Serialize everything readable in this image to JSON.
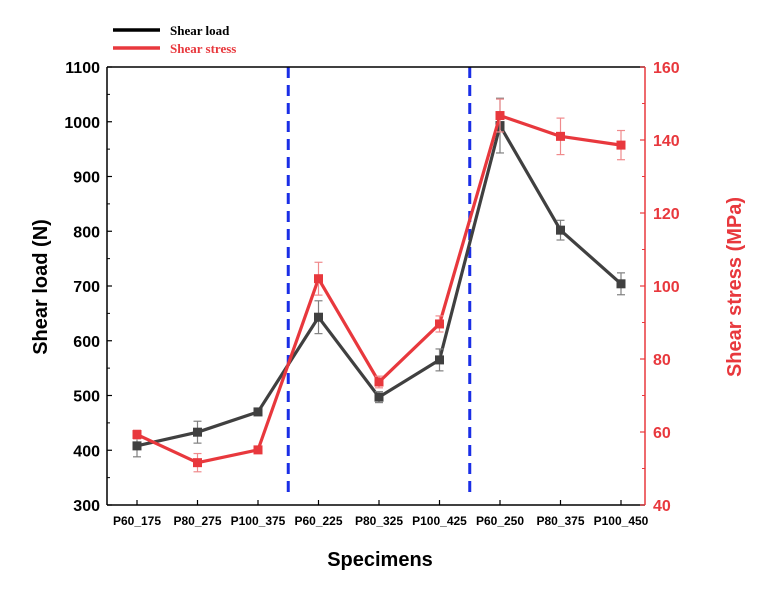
{
  "chart_data": {
    "type": "line",
    "title": "",
    "xlabel": "Specimens",
    "ylabel": "Shear load (N)",
    "ylabel_right": "Shear stress (MPa)",
    "categories": [
      "P60_175",
      "P80_275",
      "P100_375",
      "P60_225",
      "P80_325",
      "P100_425",
      "P60_250",
      "P80_375",
      "P100_450"
    ],
    "ylim": [
      300,
      1100
    ],
    "ylim_right": [
      40,
      160
    ],
    "yticks": [
      "300",
      "400",
      "500",
      "600",
      "700",
      "800",
      "900",
      "1000",
      "1100"
    ],
    "yticks_right": [
      "40",
      "60",
      "80",
      "100",
      "120",
      "140",
      "160"
    ],
    "series": [
      {
        "name": "Shear load",
        "axis": "left",
        "color": "#404040",
        "values": [
          408,
          433,
          470,
          643,
          497,
          565,
          993,
          802,
          704
        ],
        "errors": [
          20,
          20,
          5,
          30,
          10,
          20,
          50,
          18,
          20
        ]
      },
      {
        "name": "Shear stress",
        "axis": "right",
        "color": "#e8383d",
        "values": [
          59.3,
          51.6,
          55.1,
          102.0,
          73.7,
          89.6,
          146.7,
          141.0,
          138.6
        ],
        "errors": [
          1.2,
          2.5,
          0.8,
          4.5,
          1.6,
          2.2,
          4.5,
          5.0,
          4.0
        ]
      }
    ],
    "dividers_between": [
      [
        2,
        3
      ],
      [
        5,
        6
      ]
    ],
    "divider_color": "#1a2ee6",
    "legend_position": "top-left",
    "grid": false
  }
}
